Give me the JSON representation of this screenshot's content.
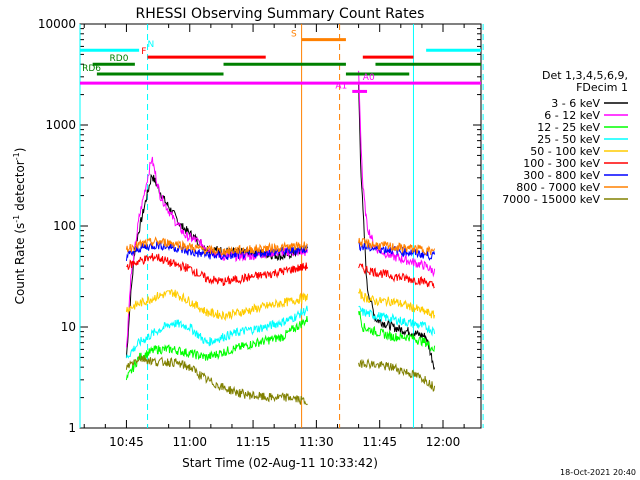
{
  "chart_data": {
    "type": "line",
    "title": "RHESSI Observing Summary Count Rates",
    "xlabel": "Start Time (02-Aug-11 10:33:42)",
    "ylabel_main": "Count Rate (s",
    "ylabel_sup1": "-1",
    "ylabel_mid": " detector",
    "ylabel_sup2": "-1",
    "ylabel_end": ")",
    "x_range_minutes": [
      0,
      95
    ],
    "y_range": [
      1,
      10000
    ],
    "y_scale": "log",
    "x_ticks": [
      {
        "t": 11,
        "label": "10:45"
      },
      {
        "t": 26,
        "label": "11:00"
      },
      {
        "t": 41,
        "label": "11:15"
      },
      {
        "t": 56,
        "label": "11:30"
      },
      {
        "t": 71,
        "label": "11:45"
      },
      {
        "t": 86,
        "label": "12:00"
      }
    ],
    "y_ticks": [
      {
        "v": 1,
        "label": "1"
      },
      {
        "v": 10,
        "label": "10"
      },
      {
        "v": 100,
        "label": "100"
      },
      {
        "v": 1000,
        "label": "1000"
      },
      {
        "v": 10000,
        "label": "10000"
      }
    ],
    "legend": {
      "header1": "Det 1,3,4,5,6,9,",
      "header2": "FDecim 1",
      "placement": "right"
    },
    "series": [
      {
        "name": "3 - 6 keV",
        "color": "#000000",
        "pre": [
          [
            11,
            5
          ],
          [
            12,
            20
          ],
          [
            13,
            60
          ],
          [
            15,
            140
          ],
          [
            17,
            320
          ],
          [
            20,
            180
          ],
          [
            24,
            100
          ],
          [
            30,
            60
          ],
          [
            36,
            55
          ],
          [
            42,
            55
          ],
          [
            48,
            50
          ],
          [
            54,
            60
          ]
        ],
        "post": [
          [
            66,
            2500
          ],
          [
            66.5,
            400
          ],
          [
            67,
            150
          ],
          [
            68,
            25
          ],
          [
            70,
            12
          ],
          [
            74,
            10
          ],
          [
            78,
            9
          ],
          [
            82,
            8
          ],
          [
            84,
            4
          ]
        ]
      },
      {
        "name": "6 - 12 keV",
        "color": "#ff00ff",
        "pre": [
          [
            11,
            6
          ],
          [
            12,
            30
          ],
          [
            14,
            120
          ],
          [
            16,
            300
          ],
          [
            17,
            470
          ],
          [
            19,
            200
          ],
          [
            22,
            120
          ],
          [
            25,
            80
          ],
          [
            28,
            70
          ],
          [
            33,
            50
          ],
          [
            40,
            50
          ],
          [
            46,
            55
          ],
          [
            54,
            55
          ]
        ],
        "post": [
          [
            66,
            3500
          ],
          [
            66.5,
            800
          ],
          [
            67,
            250
          ],
          [
            68,
            100
          ],
          [
            70,
            60
          ],
          [
            74,
            50
          ],
          [
            78,
            45
          ],
          [
            82,
            40
          ],
          [
            84,
            35
          ]
        ]
      },
      {
        "name": "12 - 25 keV",
        "color": "#00ff00",
        "pre": [
          [
            11,
            3
          ],
          [
            14,
            5
          ],
          [
            18,
            6
          ],
          [
            22,
            6
          ],
          [
            26,
            5.5
          ],
          [
            30,
            5
          ],
          [
            36,
            6
          ],
          [
            42,
            7
          ],
          [
            48,
            8
          ],
          [
            54,
            12
          ]
        ],
        "post": [
          [
            66,
            15
          ],
          [
            67,
            10
          ],
          [
            70,
            9
          ],
          [
            74,
            8
          ],
          [
            78,
            8
          ],
          [
            82,
            7
          ],
          [
            84,
            6
          ]
        ]
      },
      {
        "name": "25 - 50 keV",
        "color": "#00ffff",
        "pre": [
          [
            11,
            5
          ],
          [
            14,
            7
          ],
          [
            18,
            9
          ],
          [
            22,
            11
          ],
          [
            26,
            10
          ],
          [
            30,
            7
          ],
          [
            34,
            8
          ],
          [
            38,
            9
          ],
          [
            44,
            10
          ],
          [
            50,
            12
          ],
          [
            54,
            15
          ]
        ],
        "post": [
          [
            66,
            15
          ],
          [
            67,
            14
          ],
          [
            70,
            13
          ],
          [
            74,
            12
          ],
          [
            78,
            11
          ],
          [
            82,
            10
          ],
          [
            84,
            9
          ]
        ]
      },
      {
        "name": "50 - 100 keV",
        "color": "#ffcc00",
        "pre": [
          [
            11,
            15
          ],
          [
            14,
            17
          ],
          [
            18,
            20
          ],
          [
            22,
            22
          ],
          [
            26,
            18
          ],
          [
            30,
            14
          ],
          [
            34,
            13
          ],
          [
            38,
            14
          ],
          [
            44,
            16
          ],
          [
            50,
            18
          ],
          [
            54,
            20
          ]
        ],
        "post": [
          [
            66,
            22
          ],
          [
            67,
            20
          ],
          [
            70,
            18
          ],
          [
            74,
            18
          ],
          [
            78,
            16
          ],
          [
            82,
            14
          ],
          [
            84,
            13
          ]
        ]
      },
      {
        "name": "100 - 300 keV",
        "color": "#ff0000",
        "pre": [
          [
            11,
            40
          ],
          [
            14,
            45
          ],
          [
            18,
            50
          ],
          [
            22,
            42
          ],
          [
            26,
            38
          ],
          [
            30,
            30
          ],
          [
            34,
            28
          ],
          [
            38,
            30
          ],
          [
            44,
            33
          ],
          [
            50,
            37
          ],
          [
            54,
            40
          ]
        ],
        "post": [
          [
            66,
            40
          ],
          [
            67,
            38
          ],
          [
            70,
            35
          ],
          [
            74,
            32
          ],
          [
            78,
            30
          ],
          [
            82,
            28
          ],
          [
            84,
            25
          ]
        ]
      },
      {
        "name": "300 - 800 keV",
        "color": "#0000ff",
        "pre": [
          [
            11,
            50
          ],
          [
            14,
            60
          ],
          [
            18,
            65
          ],
          [
            22,
            62
          ],
          [
            26,
            55
          ],
          [
            30,
            52
          ],
          [
            34,
            50
          ],
          [
            38,
            52
          ],
          [
            44,
            55
          ],
          [
            50,
            57
          ],
          [
            54,
            60
          ]
        ],
        "post": [
          [
            66,
            65
          ],
          [
            67,
            62
          ],
          [
            70,
            60
          ],
          [
            74,
            58
          ],
          [
            78,
            55
          ],
          [
            82,
            52
          ],
          [
            84,
            50
          ]
        ]
      },
      {
        "name": "800 - 7000 keV",
        "color": "#ff8000",
        "pre": [
          [
            11,
            60
          ],
          [
            14,
            65
          ],
          [
            18,
            70
          ],
          [
            22,
            68
          ],
          [
            26,
            62
          ],
          [
            30,
            58
          ],
          [
            34,
            56
          ],
          [
            38,
            58
          ],
          [
            44,
            60
          ],
          [
            50,
            62
          ],
          [
            54,
            65
          ]
        ],
        "post": [
          [
            66,
            70
          ],
          [
            67,
            68
          ],
          [
            70,
            65
          ],
          [
            74,
            62
          ],
          [
            78,
            60
          ],
          [
            82,
            58
          ],
          [
            84,
            55
          ]
        ]
      },
      {
        "name": "7000 - 15000 keV",
        "color": "#808000",
        "pre": [
          [
            11,
            4
          ],
          [
            14,
            5
          ],
          [
            18,
            4.5
          ],
          [
            22,
            4.5
          ],
          [
            26,
            4
          ],
          [
            30,
            3
          ],
          [
            34,
            2.5
          ],
          [
            38,
            2.2
          ],
          [
            44,
            2
          ],
          [
            50,
            2
          ],
          [
            54,
            1.8
          ]
        ],
        "post": [
          [
            66,
            4
          ],
          [
            67,
            4.5
          ],
          [
            70,
            4.2
          ],
          [
            74,
            4
          ],
          [
            78,
            3.5
          ],
          [
            82,
            3
          ],
          [
            84,
            2.5
          ]
        ]
      }
    ],
    "state_bars": [
      {
        "label": "N",
        "color": "#00ffff",
        "segments": [
          [
            0,
            14
          ],
          [
            82,
            95
          ]
        ],
        "label_t": 16,
        "level": 5500
      },
      {
        "label": "S",
        "color": "#ff8000",
        "segments": [
          [
            52.5,
            63
          ]
        ],
        "label_t": 50,
        "level": 7000
      },
      {
        "label": "F",
        "color": "#ff0000",
        "segments": [
          [
            16,
            44
          ],
          [
            67,
            79
          ]
        ],
        "label_t": 14.5,
        "level": 4700
      },
      {
        "label": "RD0",
        "color": "#008000",
        "segments": [
          [
            3,
            13
          ],
          [
            34,
            63
          ],
          [
            70,
            95
          ]
        ],
        "label_t": 7,
        "level": 4000
      },
      {
        "label": "RD6",
        "color": "#008000",
        "segments": [
          [
            4,
            34
          ],
          [
            63,
            78
          ]
        ],
        "label_t": 0.5,
        "level": 3200
      },
      {
        "label": "A0",
        "color": "#ff00ff",
        "segments": [
          [
            0,
            95
          ]
        ],
        "label_t": 67,
        "level": 2600
      },
      {
        "label": "A1",
        "color": "#ff00ff",
        "segments": [
          [
            64.5,
            68
          ]
        ],
        "label_t": 60.5,
        "level": 2150
      }
    ],
    "vlines": [
      {
        "t": 16,
        "color": "#00ffff",
        "dashed": true
      },
      {
        "t": 52.5,
        "color": "#ff8000",
        "dashed": false
      },
      {
        "t": 61.5,
        "color": "#ff8000",
        "dashed": true
      },
      {
        "t": 79,
        "color": "#00ffff",
        "dashed": false
      },
      {
        "t": 95.5,
        "color": "#00ffff",
        "dashed": true
      },
      {
        "t": 0,
        "color": "#00ffff",
        "dashed": false
      }
    ],
    "timestamp": "18-Oct-2021 20:40"
  }
}
